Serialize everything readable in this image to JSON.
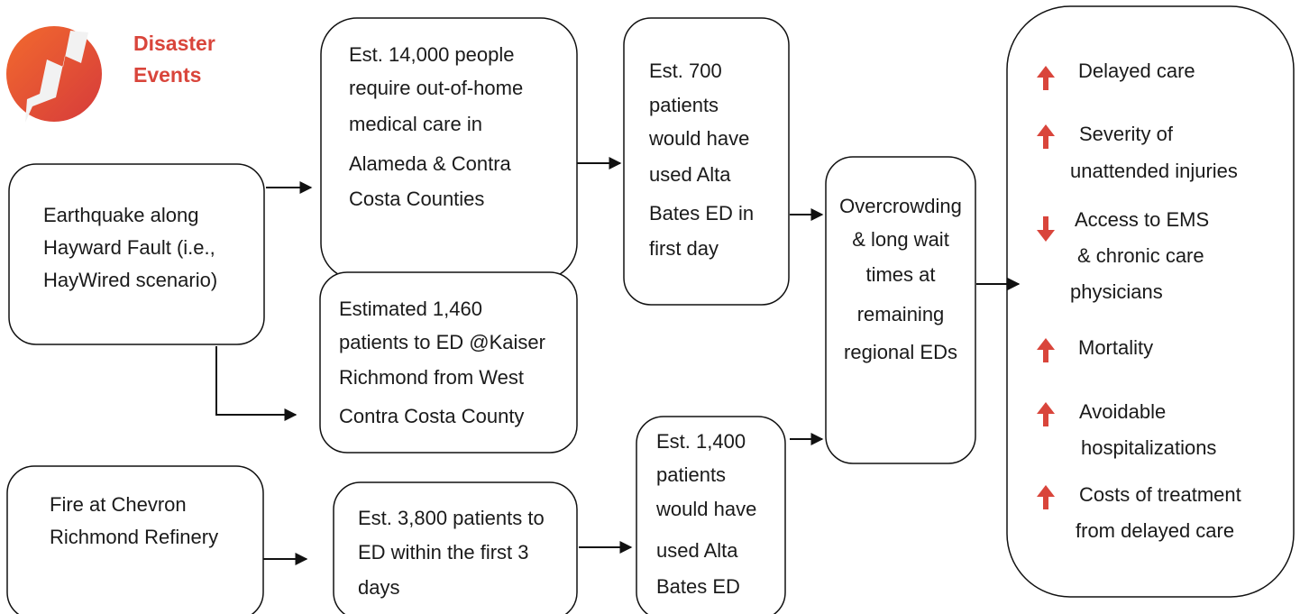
{
  "header": {
    "title": [
      "Disaster",
      "Events"
    ]
  },
  "nodes": [
    {
      "lines": [
        "Earthquake along",
        "Hayward Fault (i.e.,",
        "HayWired scenario)"
      ]
    },
    {
      "lines": [
        "Est. 14,000 people",
        "require out-of-home",
        "medical care in",
        "Alameda & Contra",
        "Costa Counties"
      ]
    },
    {
      "lines": [
        "Est. 700",
        "patients",
        "would have",
        "used Alta",
        "Bates ED in",
        "first day"
      ]
    },
    {
      "lines": [
        "Estimated 1,460",
        "patients to ED @Kaiser",
        "Richmond from West",
        "Contra Costa County"
      ]
    },
    {
      "lines": [
        "Fire at Chevron",
        "Richmond Refinery"
      ]
    },
    {
      "lines": [
        "Est. 3,800 patients to",
        "ED within the first 3",
        "days"
      ]
    },
    {
      "lines": [
        "Est. 1,400",
        "patients",
        "would have",
        "used Alta",
        "Bates ED"
      ]
    },
    {
      "lines": [
        "Overcrowding",
        "& long wait",
        "times at",
        "remaining",
        "regional EDs"
      ]
    }
  ],
  "outcomes": [
    {
      "lines": [
        "Delayed care"
      ]
    },
    {
      "lines": [
        "Severity of",
        "unattended injuries"
      ]
    },
    {
      "lines": [
        "Access to EMS",
        "& chronic care",
        "physicians"
      ]
    },
    {
      "lines": [
        "Mortality"
      ]
    },
    {
      "lines": [
        "Avoidable",
        "hospitalizations"
      ]
    },
    {
      "lines": [
        "Costs of treatment",
        "from delayed care"
      ]
    }
  ]
}
